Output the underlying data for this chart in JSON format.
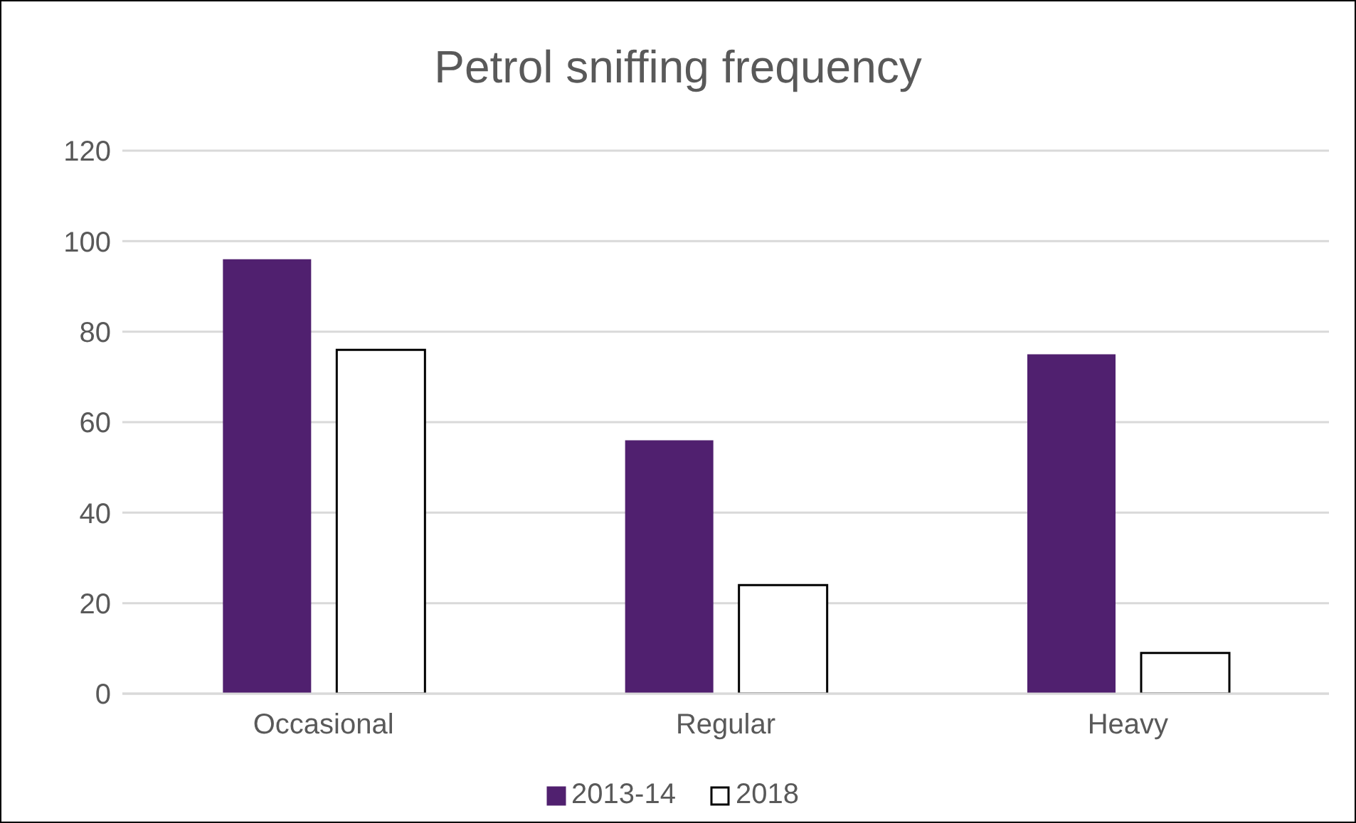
{
  "chart_data": {
    "type": "bar",
    "title": "Petrol sniffing frequency",
    "categories": [
      "Occasional",
      "Regular",
      "Heavy"
    ],
    "series": [
      {
        "name": "2013-14",
        "color": "#50206f",
        "values": [
          96,
          56,
          75
        ]
      },
      {
        "name": "2018",
        "color": "#ffffff",
        "values": [
          76,
          24,
          9
        ]
      }
    ],
    "ylim": [
      0,
      120
    ],
    "yticks": [
      0,
      20,
      40,
      60,
      80,
      100,
      120
    ],
    "grid": "y",
    "legend": "bottom"
  }
}
